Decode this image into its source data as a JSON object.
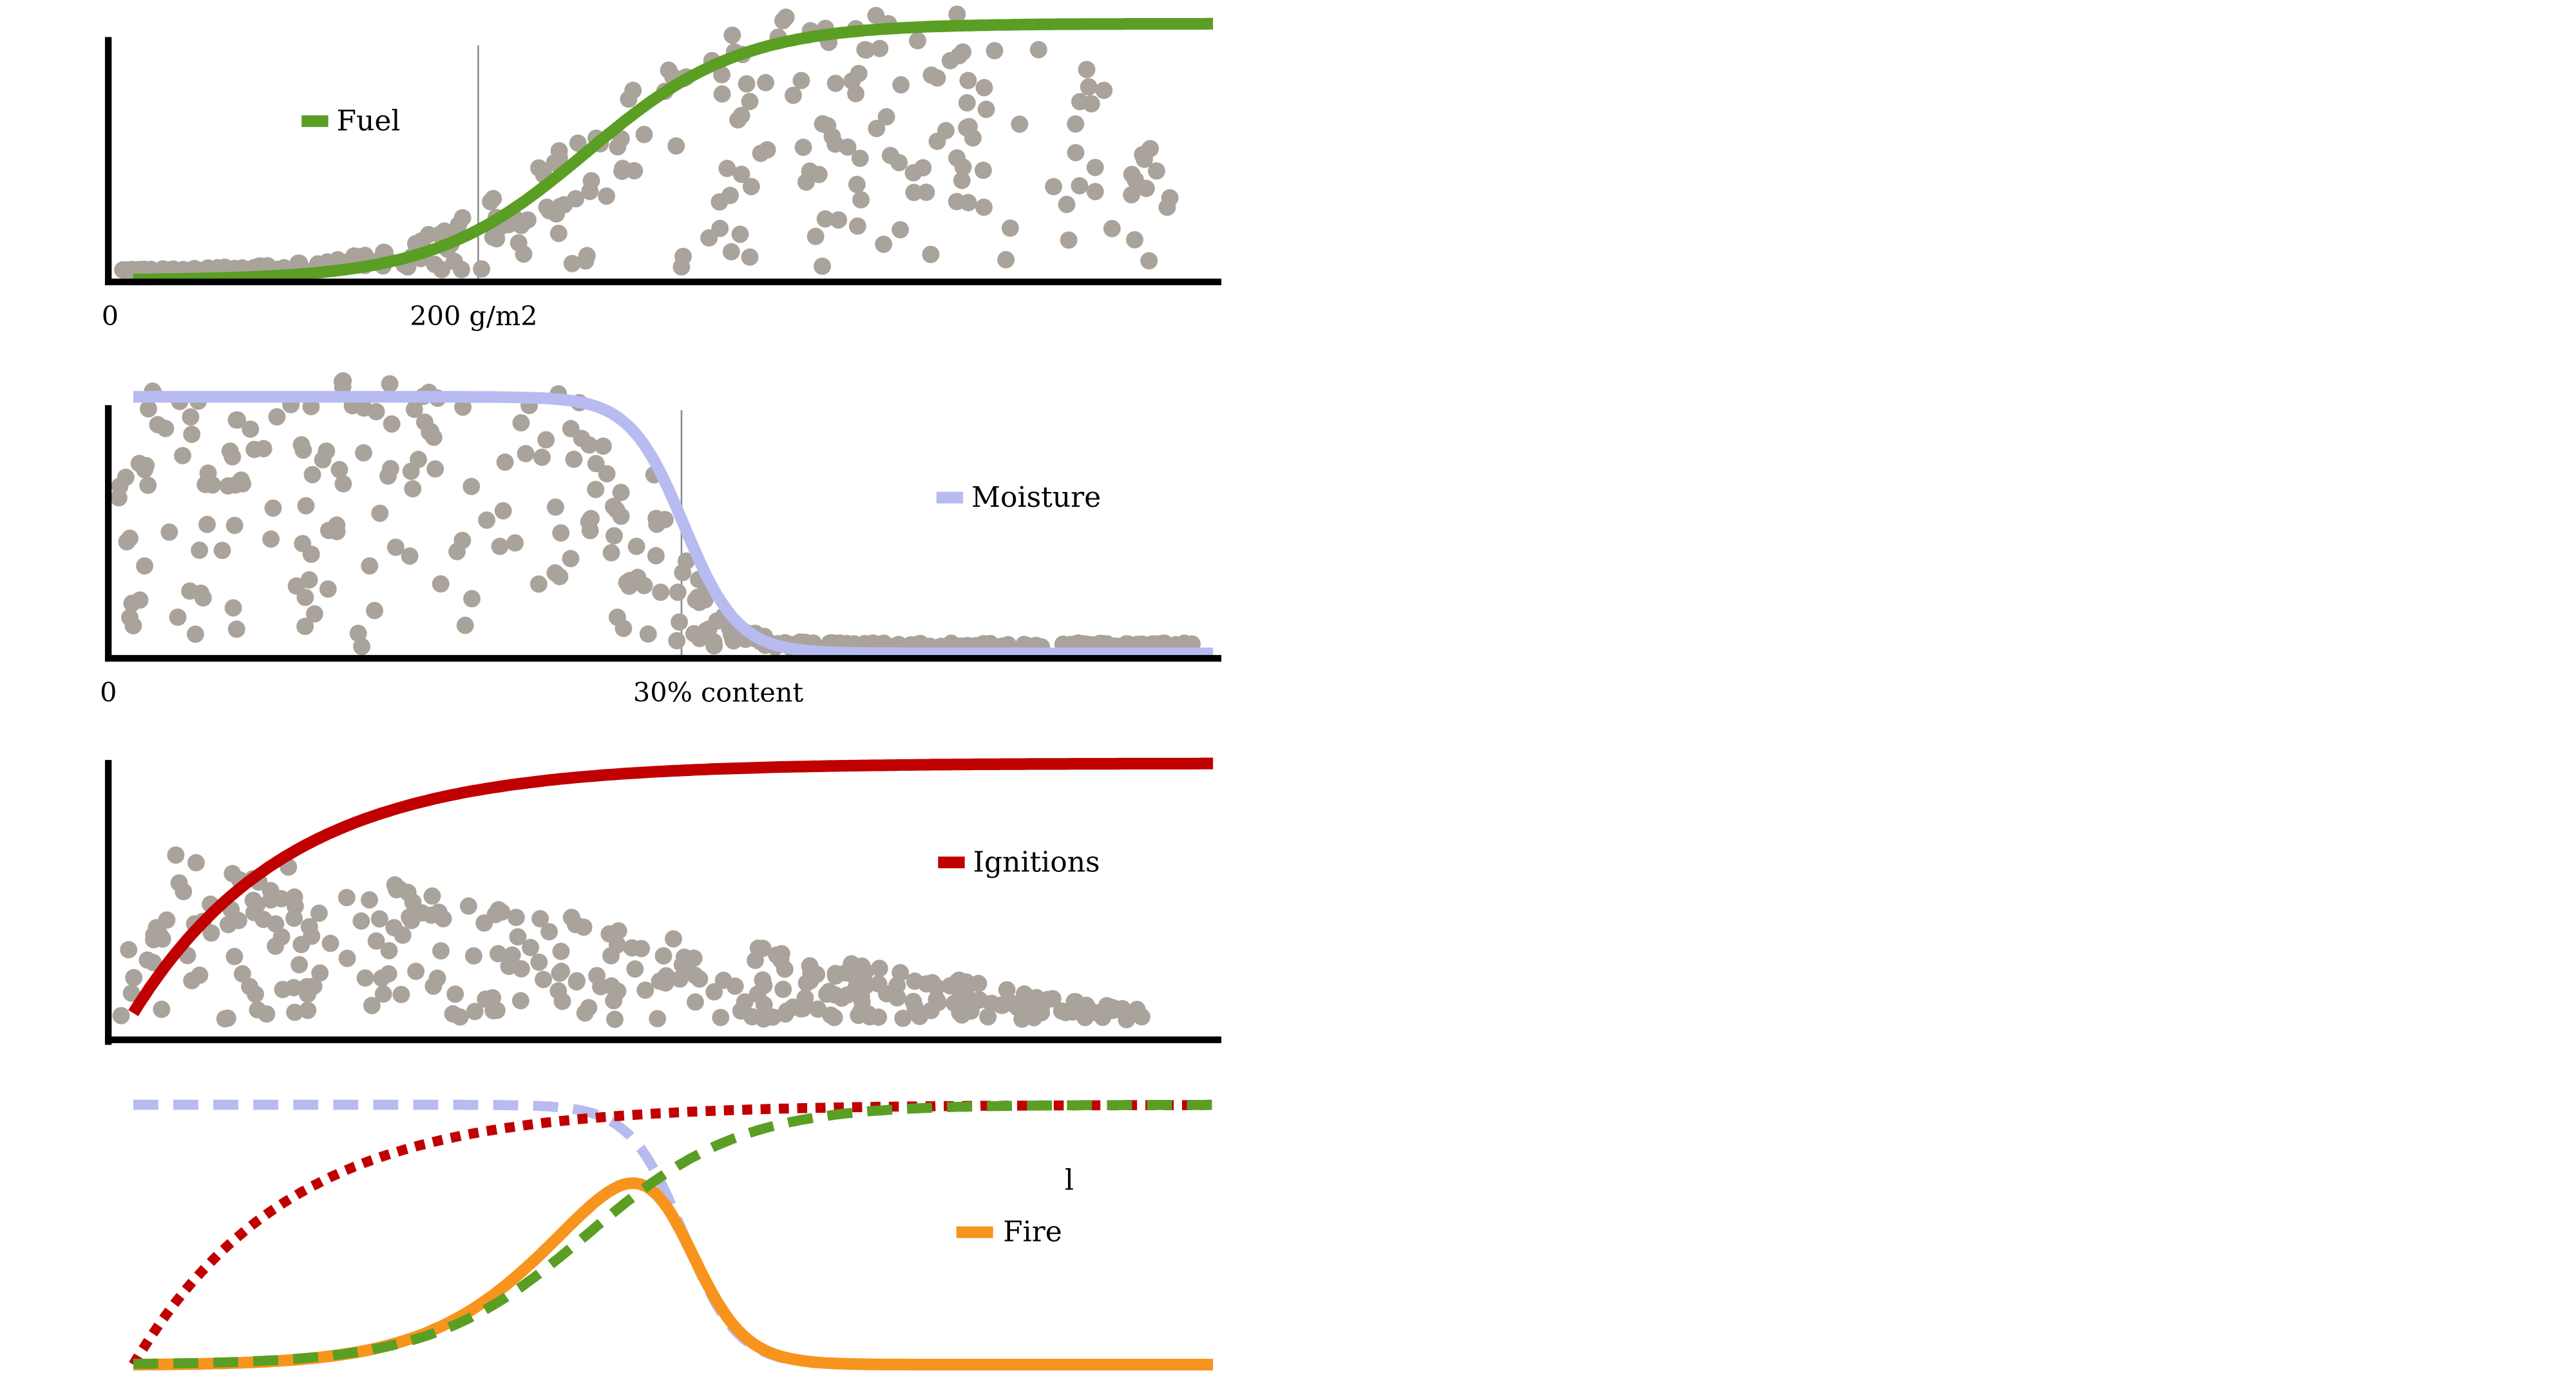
{
  "colors": {
    "fuel": "#5A9E23",
    "moisture": "#B8BBF0",
    "ignitions": "#C00000",
    "fire": "#F7941D",
    "points": "#A9A39C",
    "axis": "#000000",
    "refline": "#8C8C8C"
  },
  "stray_mark": "l",
  "chart_data": [
    {
      "type": "line",
      "title": "",
      "series": [
        {
          "name": "Fuel",
          "color": "#5A9E23",
          "curve": "sigmoid-rising",
          "midpoint": 0.42,
          "steepness": 14
        }
      ],
      "x_tick_labels": [
        "0",
        "200 g/m2"
      ],
      "reference_line": "200 g/m2",
      "scatter_points": 260,
      "legend_position": "top-left",
      "grid": false
    },
    {
      "type": "line",
      "title": "",
      "series": [
        {
          "name": "Moisture",
          "color": "#B8BBF0",
          "curve": "sigmoid-falling",
          "midpoint": 0.51,
          "steepness": 40
        }
      ],
      "x_tick_labels": [
        "0",
        "30% content"
      ],
      "reference_line": "30% content",
      "scatter_points": 330,
      "legend_position": "middle-right",
      "grid": false
    },
    {
      "type": "line",
      "title": "",
      "series": [
        {
          "name": "Ignitions",
          "color": "#C00000",
          "curve": "saturating-rise",
          "rate": 7
        }
      ],
      "x_tick_labels": [],
      "scatter_points": 300,
      "legend_position": "top-right",
      "grid": false
    },
    {
      "type": "line",
      "title": "",
      "series": [
        {
          "name": "",
          "color": "#B8BBF0",
          "style": "dashed",
          "source": "moisture"
        },
        {
          "name": "",
          "color": "#C00000",
          "style": "dotted",
          "source": "ignitions"
        },
        {
          "name": "",
          "color": "#5A9E23",
          "style": "dashed",
          "source": "fuel"
        },
        {
          "name": "Fire",
          "color": "#F7941D",
          "style": "solid",
          "source": "fuel x moisture x ignitions"
        }
      ],
      "legend_position": "middle-right",
      "grid": false
    }
  ]
}
